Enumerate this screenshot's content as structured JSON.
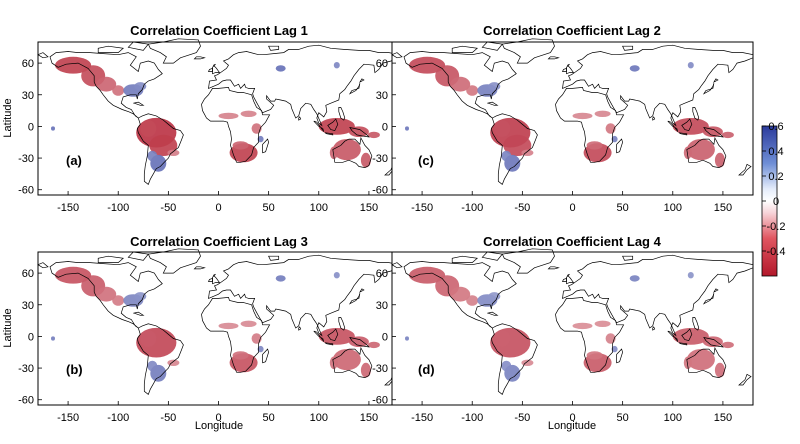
{
  "figure": {
    "ylabel": "Latitude",
    "xlabel": "Longitude",
    "x_ticks": [
      -150,
      -100,
      -50,
      0,
      50,
      100,
      150
    ],
    "y_ticks": [
      60,
      30,
      0,
      -30,
      -60
    ],
    "xlim": [
      -180,
      180
    ],
    "ylim": [
      -65,
      80
    ]
  },
  "panels": [
    {
      "id": "lag1",
      "title": "Correlation Coefficient Lag 1",
      "tag": "(a)"
    },
    {
      "id": "lag2",
      "title": "Correlation Coefficient Lag 2",
      "tag": "(c)"
    },
    {
      "id": "lag3",
      "title": "Correlation Coefficient Lag 3",
      "tag": "(b)"
    },
    {
      "id": "lag4",
      "title": "Correlation Coefficient Lag 4",
      "tag": "(d)"
    }
  ],
  "colorbar": {
    "ticks": [
      "0.6",
      "0.4",
      "0.2",
      "0",
      "-0.2",
      "-0.4"
    ],
    "range": [
      -0.6,
      0.6
    ],
    "colors": {
      "negative": "#b2182b",
      "neutral": "#ffffff",
      "positive": "#2c3b9c"
    }
  },
  "correlation_regions": [
    {
      "region": "Western North America",
      "sign": "negative",
      "lon": [
        -165,
        -105
      ],
      "lat": [
        32,
        68
      ]
    },
    {
      "region": "Eastern United States",
      "sign": "positive",
      "lon": [
        -95,
        -75
      ],
      "lat": [
        28,
        42
      ]
    },
    {
      "region": "Tropical South America",
      "sign": "negative",
      "lon": [
        -80,
        -35
      ],
      "lat": [
        -25,
        10
      ]
    },
    {
      "region": "Southern South America",
      "sign": "positive",
      "lon": [
        -72,
        -50
      ],
      "lat": [
        -45,
        -25
      ]
    },
    {
      "region": "Southern Africa",
      "sign": "negative",
      "lon": [
        12,
        40
      ],
      "lat": [
        -34,
        -15
      ]
    },
    {
      "region": "Maritime Continent",
      "sign": "negative",
      "lon": [
        95,
        150
      ],
      "lat": [
        -10,
        8
      ]
    },
    {
      "region": "Australia",
      "sign": "negative",
      "lon": [
        115,
        150
      ],
      "lat": [
        -38,
        -12
      ]
    },
    {
      "region": "Central Asia",
      "sign": "positive",
      "lon": [
        55,
        80
      ],
      "lat": [
        50,
        60
      ]
    }
  ]
}
